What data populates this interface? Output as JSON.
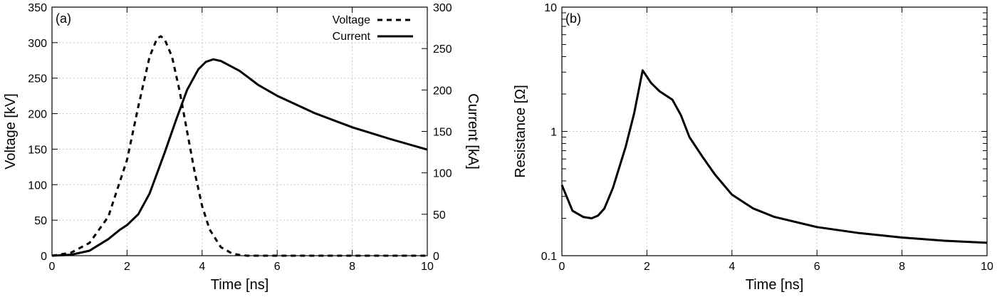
{
  "chart_data": [
    {
      "type": "line",
      "panel_label": "(a)",
      "xlabel": "Time [ns]",
      "ylabel": "Voltage [kV]",
      "y2label": "Current [kA]",
      "xlim": [
        0,
        10
      ],
      "ylim": [
        0,
        350
      ],
      "y2lim": [
        0,
        300
      ],
      "x_ticks": [
        0,
        2,
        4,
        6,
        8,
        10
      ],
      "y_ticks": [
        0,
        50,
        100,
        150,
        200,
        250,
        300,
        350
      ],
      "y2_ticks": [
        0,
        50,
        100,
        150,
        200,
        250,
        300
      ],
      "grid": true,
      "legend": "top-right",
      "series": [
        {
          "name": "Voltage",
          "axis": "left",
          "style": "dashed",
          "color": "#000000",
          "x": [
            0,
            0.5,
            1.0,
            1.5,
            2.0,
            2.3,
            2.6,
            2.8,
            2.9,
            3.0,
            3.2,
            3.4,
            3.6,
            3.8,
            4.0,
            4.2,
            4.5,
            4.8,
            5.0,
            5.2,
            6,
            7,
            8,
            9,
            10
          ],
          "values": [
            0,
            4,
            18,
            55,
            135,
            210,
            280,
            306,
            309,
            305,
            280,
            232,
            175,
            118,
            70,
            37,
            12,
            3,
            1,
            0,
            0,
            0,
            0,
            0,
            0
          ]
        },
        {
          "name": "Current",
          "axis": "right",
          "style": "solid",
          "color": "#000000",
          "x": [
            0,
            0.5,
            1.0,
            1.5,
            1.8,
            2.0,
            2.3,
            2.6,
            3.0,
            3.3,
            3.6,
            3.9,
            4.1,
            4.3,
            4.5,
            5.0,
            5.5,
            6.0,
            7.0,
            8.0,
            9.0,
            10.0
          ],
          "values": [
            0,
            1,
            6,
            20,
            31,
            37,
            50,
            75,
            124,
            163,
            200,
            225,
            234,
            237,
            235,
            223,
            206,
            193,
            172,
            155,
            141,
            128
          ]
        }
      ]
    },
    {
      "type": "line",
      "panel_label": "(b)",
      "xlabel": "Time [ns]",
      "ylabel": "Resistance [Ω]",
      "xlim": [
        0,
        10
      ],
      "ylim": [
        0.1,
        10
      ],
      "yscale": "log",
      "x_ticks": [
        0,
        2,
        4,
        6,
        8,
        10
      ],
      "y_ticks": [
        0.1,
        1,
        10
      ],
      "y_tick_labels": [
        "0.1",
        "1",
        "10"
      ],
      "grid": true,
      "series": [
        {
          "style": "solid",
          "color": "#000000",
          "x": [
            0,
            0.25,
            0.5,
            0.7,
            0.85,
            1.0,
            1.2,
            1.5,
            1.7,
            1.9,
            2.1,
            2.3,
            2.6,
            2.8,
            3.0,
            3.3,
            3.6,
            4.0,
            4.5,
            5.0,
            6.0,
            7.0,
            8.0,
            9.0,
            10.0
          ],
          "values": [
            0.37,
            0.23,
            0.205,
            0.2,
            0.21,
            0.24,
            0.35,
            0.75,
            1.4,
            3.1,
            2.45,
            2.1,
            1.8,
            1.35,
            0.9,
            0.63,
            0.45,
            0.31,
            0.24,
            0.205,
            0.17,
            0.152,
            0.14,
            0.132,
            0.127
          ]
        }
      ]
    }
  ]
}
